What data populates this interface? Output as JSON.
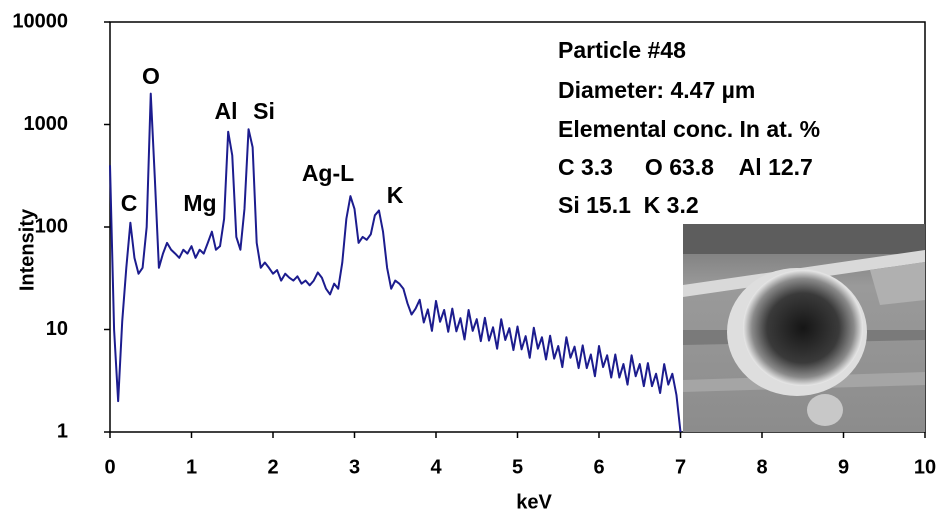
{
  "chart_data": {
    "type": "line",
    "xlabel": "keV",
    "ylabel": "Intensity",
    "x": [
      0,
      0.05,
      0.1,
      0.15,
      0.2,
      0.25,
      0.3,
      0.35,
      0.4,
      0.45,
      0.5,
      0.55,
      0.6,
      0.65,
      0.7,
      0.75,
      0.8,
      0.85,
      0.9,
      0.95,
      1,
      1.05,
      1.1,
      1.15,
      1.2,
      1.25,
      1.3,
      1.35,
      1.4,
      1.45,
      1.5,
      1.55,
      1.6,
      1.65,
      1.7,
      1.75,
      1.8,
      1.85,
      1.9,
      1.95,
      2,
      2.05,
      2.1,
      2.15,
      2.2,
      2.25,
      2.3,
      2.35,
      2.4,
      2.45,
      2.5,
      2.55,
      2.6,
      2.65,
      2.7,
      2.75,
      2.8,
      2.85,
      2.9,
      2.95,
      3,
      3.05,
      3.1,
      3.15,
      3.2,
      3.25,
      3.3,
      3.35,
      3.4,
      3.45,
      3.5,
      3.55,
      3.6,
      3.65,
      3.7,
      3.75,
      3.8,
      3.85,
      3.9,
      3.95,
      4,
      4.05,
      4.1,
      4.15,
      4.2,
      4.25,
      4.3,
      4.35,
      4.4,
      4.45,
      4.5,
      4.55,
      4.6,
      4.65,
      4.7,
      4.75,
      4.8,
      4.85,
      4.9,
      4.95,
      5,
      5.05,
      5.1,
      5.15,
      5.2,
      5.25,
      5.3,
      5.35,
      5.4,
      5.45,
      5.5,
      5.55,
      5.6,
      5.65,
      5.7,
      5.75,
      5.8,
      5.85,
      5.9,
      5.95,
      6,
      6.05,
      6.1,
      6.15,
      6.2,
      6.25,
      6.3,
      6.35,
      6.4,
      6.45,
      6.5,
      6.55,
      6.6,
      6.65,
      6.7,
      6.75,
      6.8,
      6.85,
      6.9,
      6.95,
      7
    ],
    "values": [
      400,
      10,
      2,
      12,
      40,
      110,
      50,
      35,
      40,
      100,
      2000,
      300,
      40,
      55,
      70,
      60,
      55,
      50,
      60,
      55,
      65,
      50,
      60,
      55,
      70,
      90,
      60,
      65,
      120,
      850,
      500,
      80,
      60,
      150,
      900,
      600,
      70,
      40,
      45,
      40,
      35,
      38,
      30,
      35,
      32,
      30,
      33,
      28,
      30,
      27,
      30,
      36,
      32,
      25,
      22,
      28,
      25,
      45,
      120,
      200,
      150,
      70,
      80,
      75,
      85,
      130,
      145,
      90,
      40,
      25,
      30,
      28,
      25,
      18,
      14,
      16,
      19.5,
      11.7,
      15.7,
      9.7,
      19.0,
      11.9,
      15.5,
      9.5,
      16.0,
      9.6,
      12.9,
      8.0,
      15.5,
      9.7,
      12.6,
      7.7,
      13.0,
      7.8,
      10.5,
      6.5,
      12.6,
      7.9,
      10.3,
      6.3,
      10.7,
      6.4,
      8.6,
      5.3,
      10.4,
      6.5,
      8.4,
      5.1,
      8.7,
      5.2,
      6.9,
      4.3,
      8.4,
      5.3,
      6.8,
      4.2,
      7.0,
      4.2,
      5.7,
      3.5,
      6.9,
      4.3,
      5.6,
      3.4,
      5.7,
      3.4,
      4.6,
      2.9,
      5.6,
      3.5,
      4.6,
      2.8,
      4.7,
      2.8,
      3.7,
      2.4,
      4.6,
      2.9,
      3.7,
      2.3,
      1
    ],
    "color": "#1c1c8e",
    "xlim": [
      0,
      10
    ],
    "xticks": [
      0,
      1,
      2,
      3,
      4,
      5,
      6,
      7,
      8,
      9,
      10
    ],
    "ylim": [
      1,
      10000
    ],
    "yticks": [
      1,
      10,
      100,
      1000,
      10000
    ],
    "yscale": "log",
    "grid": false,
    "peak_labels": [
      "C",
      "O",
      "Mg",
      "Al",
      "Si",
      "Ag-L",
      "K"
    ],
    "annotations": [
      "Particle #48",
      "Diameter: 4.47 µm",
      "Elemental conc. In at. %",
      "C 3.3     O 63.8    Al 12.7",
      "Si 15.1  K 3.2"
    ]
  }
}
